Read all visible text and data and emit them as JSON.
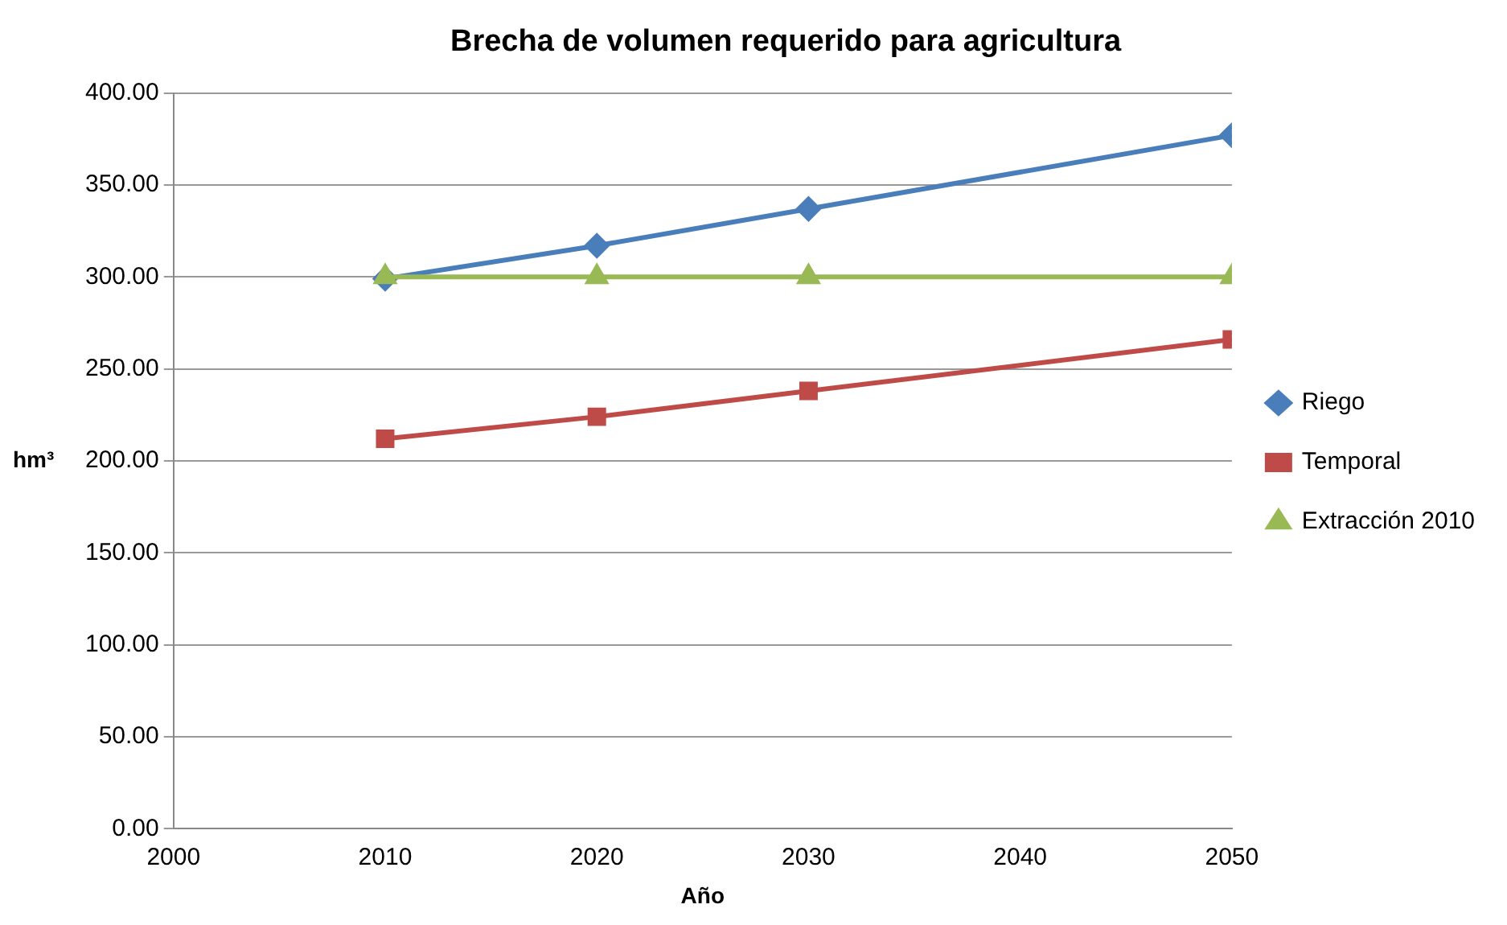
{
  "chart_data": {
    "type": "line",
    "title": "Brecha de volumen requerido para agricultura",
    "xlabel": "Año",
    "ylabel": "hm³",
    "x": [
      2010,
      2020,
      2030,
      2050
    ],
    "series": [
      {
        "name": "Riego",
        "color": "#4a7ebb",
        "marker": "diamond",
        "values": [
          299,
          317,
          337,
          377
        ]
      },
      {
        "name": "Temporal",
        "color": "#be4b48",
        "marker": "square",
        "values": [
          212,
          224,
          238,
          266
        ]
      },
      {
        "name": "Extracción 2010",
        "color": "#98b954",
        "marker": "triangle",
        "values": [
          300,
          300,
          300,
          300
        ]
      }
    ],
    "xlim": [
      2000,
      2050
    ],
    "xticks": [
      2000,
      2010,
      2020,
      2030,
      2040,
      2050
    ],
    "ylim": [
      0,
      400
    ],
    "yticks": [
      {
        "value": 0,
        "label": "0.00"
      },
      {
        "value": 50,
        "label": "50.00"
      },
      {
        "value": 100,
        "label": "100.00"
      },
      {
        "value": 150,
        "label": "150.00"
      },
      {
        "value": 200,
        "label": "200.00"
      },
      {
        "value": 250,
        "label": "250.00"
      },
      {
        "value": 300,
        "label": "300.00"
      },
      {
        "value": 350,
        "label": "350.00"
      },
      {
        "value": 400,
        "label": "400.00"
      }
    ],
    "grid": "y",
    "legend": "right",
    "line_style": "solid"
  }
}
